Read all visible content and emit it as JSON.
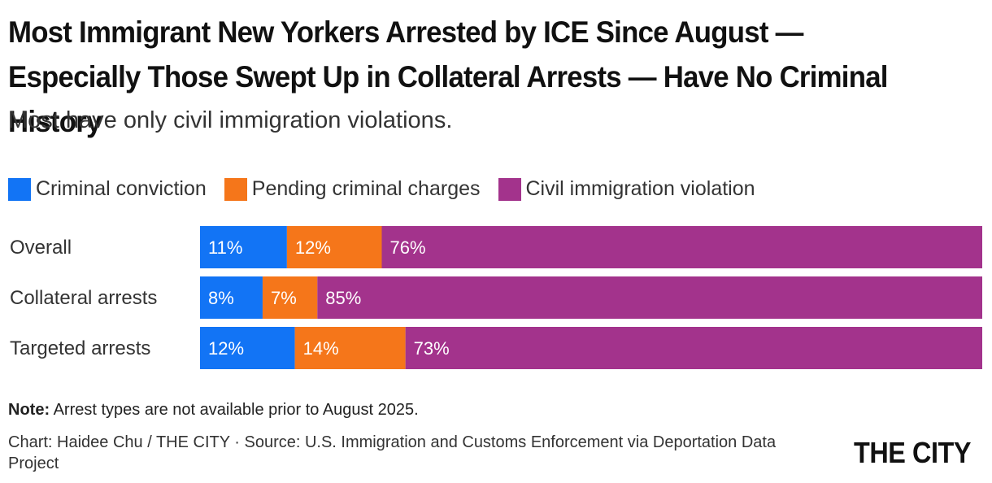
{
  "header": {
    "title": "Most Immigrant New Yorkers Arrested by ICE Since August — Especially Those Swept Up in Collateral Arrests — Have No Criminal History",
    "subtitle": "Most have only civil immigration violations."
  },
  "chart_data": {
    "type": "bar",
    "orientation": "horizontal",
    "stacked": true,
    "categories": [
      "Overall",
      "Collateral arrests",
      "Targeted arrests"
    ],
    "series": [
      {
        "name": "Criminal conviction",
        "color": "#1274f5",
        "values": [
          11,
          8,
          12
        ],
        "labels": [
          "11%",
          "8%",
          "12%"
        ]
      },
      {
        "name": "Pending criminal charges",
        "color": "#f5761a",
        "values": [
          12,
          7,
          14
        ],
        "labels": [
          "12%",
          "7%",
          "14%"
        ]
      },
      {
        "name": "Civil immigration violation",
        "color": "#a3338c",
        "values": [
          76,
          85,
          73
        ],
        "labels": [
          "76%",
          "85%",
          "73%"
        ]
      }
    ],
    "xlim": [
      0,
      100
    ],
    "unit": "%",
    "grid": false,
    "legend_position": "top-left"
  },
  "footer": {
    "note_label": "Note:",
    "note_text": " Arrest types are not available prior to August 2025.",
    "credit": "Chart: Haidee Chu / THE CITY · Source: U.S. Immigration and Customs Enforcement via Deportation Data Project",
    "logo": "THE CITY"
  }
}
